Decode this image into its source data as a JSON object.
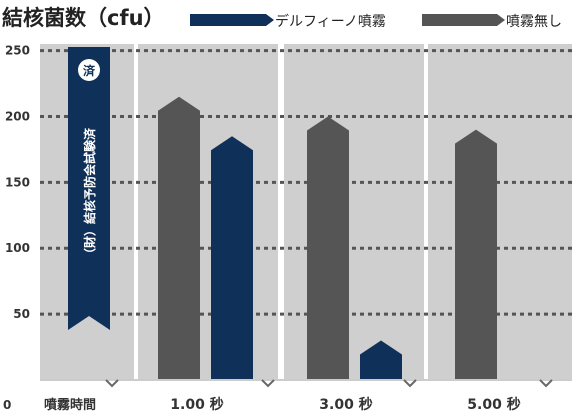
{
  "colors": {
    "series_spray": "#0f3159",
    "series_none": "#555555",
    "panel": "#cfcfcf",
    "gridline": "#555555",
    "banner": "#0f3159"
  },
  "chart_data": {
    "type": "bar",
    "title": "結核菌数（cfu）",
    "xlabel": "噴霧時間",
    "ylabel": "",
    "categories": [
      "1.00 秒",
      "3.00 秒",
      "5.00 秒"
    ],
    "series": [
      {
        "name": "噴霧無し",
        "values": [
          215,
          200,
          190
        ]
      },
      {
        "name": "デルフィーノ噴霧",
        "values": [
          185,
          30,
          0
        ]
      }
    ],
    "ylim": [
      0,
      255
    ],
    "yticks": [
      250,
      200,
      150,
      100,
      50
    ],
    "origin_label": "0",
    "grid": true,
    "legend_position": "top-right",
    "legend_order": [
      "デルフィーノ噴霧",
      "噴霧無し"
    ]
  },
  "banner": {
    "seal": "済",
    "text": "（財）結核予防会試験済"
  }
}
